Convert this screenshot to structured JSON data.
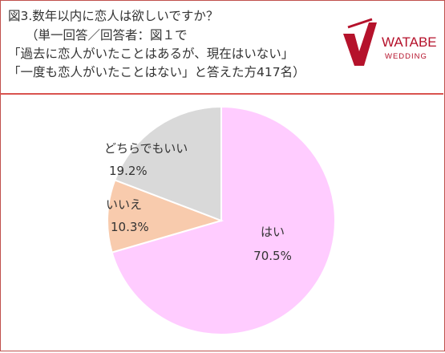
{
  "header": {
    "lines": [
      "図3.数年以内に恋人は欲しいですか？",
      "（単一回答／回答者：図１で",
      "「過去に恋人がいたことはあるが、現在はいない」",
      "「一度も恋人がいたことはない」と答えた方417名）"
    ]
  },
  "logo": {
    "brand": "WATABE",
    "sub": "WEDDING",
    "color": "#b5122b"
  },
  "chart_data": {
    "type": "pie",
    "slices": [
      {
        "label": "はい",
        "value": 70.5,
        "display": "70.5%",
        "color": "#ffccff"
      },
      {
        "label": "いいえ",
        "value": 10.3,
        "display": "10.3%",
        "color": "#f8cbad"
      },
      {
        "label": "どちらでもいい",
        "value": 19.2,
        "display": "19.2%",
        "color": "#d9d9d9"
      }
    ]
  }
}
